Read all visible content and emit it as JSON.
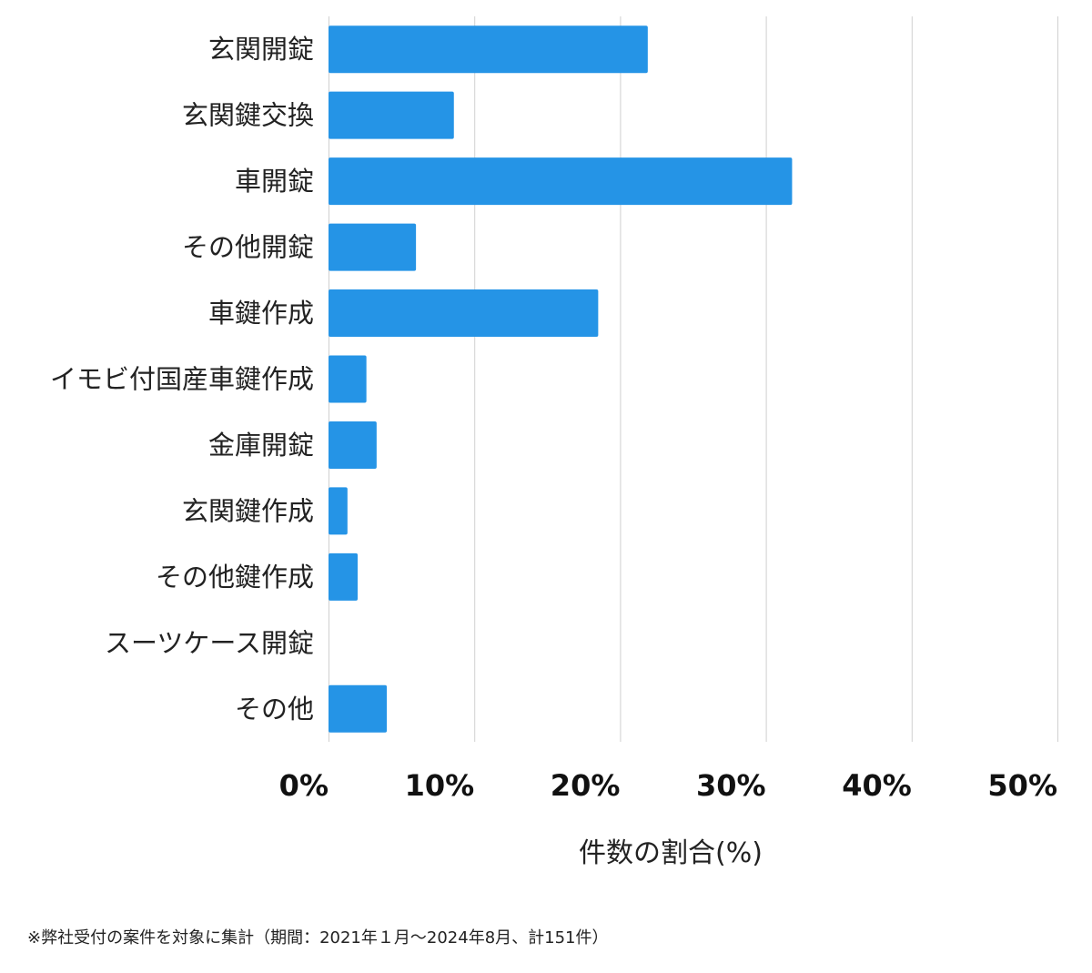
{
  "chart_data": {
    "type": "bar",
    "orientation": "horizontal",
    "categories": [
      "玄関開錠",
      "玄関鍵交換",
      "車開錠",
      "その他開錠",
      "車鍵作成",
      "イモビ付国産車鍵作成",
      "金庫開錠",
      "玄関鍵作成",
      "その他鍵作成",
      "スーツケース開錠",
      "その他"
    ],
    "values": [
      21.9,
      8.6,
      31.8,
      6.0,
      18.5,
      2.6,
      3.3,
      1.3,
      2.0,
      0,
      4.0
    ],
    "xlabel": "件数の割合(%)",
    "ylabel": "",
    "xlim": [
      0,
      50
    ],
    "ticks": [
      0,
      10,
      20,
      30,
      40,
      50
    ],
    "tick_labels": [
      "0%",
      "10%",
      "20%",
      "30%",
      "40%",
      "50%"
    ],
    "grid": true,
    "bar_color": "#2594e6",
    "grid_color": "#d0d0d0"
  },
  "footnote": "※弊社受付の案件を対象に集計（期間：2021年１月〜2024年8月、計151件）"
}
